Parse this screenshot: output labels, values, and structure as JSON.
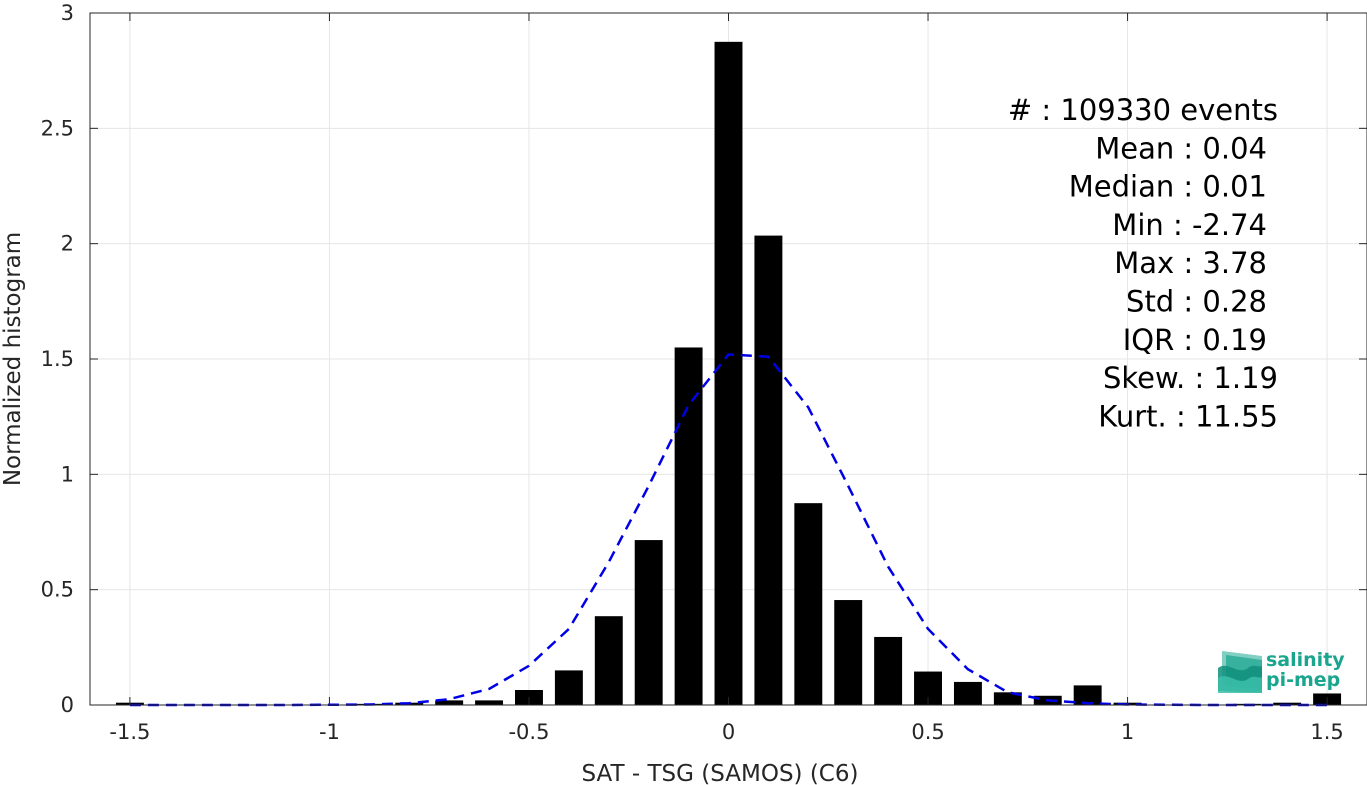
{
  "chart_data": {
    "type": "bar",
    "xlabel": "SAT - TSG (SAMOS) (C6)",
    "ylabel": "Normalized histogram",
    "xlim": [
      -1.6,
      1.6
    ],
    "ylim": [
      0,
      3
    ],
    "grid": true,
    "x_ticks": [
      -1.5,
      -1,
      -0.5,
      0,
      0.5,
      1,
      1.5
    ],
    "x_tick_labels": [
      "-1.5",
      "-1",
      "-0.5",
      "0",
      "0.5",
      "1",
      "1.5"
    ],
    "y_ticks": [
      0,
      0.5,
      1,
      1.5,
      2,
      2.5,
      3
    ],
    "y_tick_labels": [
      "0",
      "0.5",
      "1",
      "1.5",
      "2",
      "2.5",
      "3"
    ],
    "bar_width": 0.07,
    "bars": {
      "x": [
        -1.5,
        -1.4,
        -1.3,
        -1.2,
        -1.1,
        -1.0,
        -0.9,
        -0.8,
        -0.7,
        -0.6,
        -0.5,
        -0.4,
        -0.3,
        -0.2,
        -0.1,
        0.0,
        0.1,
        0.2,
        0.3,
        0.4,
        0.5,
        0.6,
        0.7,
        0.8,
        0.9,
        1.0,
        1.1,
        1.2,
        1.3,
        1.4,
        1.5
      ],
      "values": [
        0.01,
        0.0,
        0.0,
        0.0,
        0.0,
        0.0,
        0.005,
        0.01,
        0.02,
        0.02,
        0.065,
        0.15,
        0.385,
        0.715,
        1.55,
        2.875,
        2.035,
        0.875,
        0.455,
        0.295,
        0.145,
        0.1,
        0.055,
        0.04,
        0.085,
        0.01,
        0.0,
        0.0,
        0.005,
        0.01,
        0.05
      ]
    },
    "series": [
      {
        "type": "line",
        "style": "dashed",
        "color": "#0000e6",
        "x": [
          -1.5,
          -1.3,
          -1.1,
          -0.9,
          -0.8,
          -0.7,
          -0.6,
          -0.5,
          -0.4,
          -0.3,
          -0.2,
          -0.1,
          0.0,
          0.1,
          0.2,
          0.3,
          0.4,
          0.5,
          0.6,
          0.7,
          0.8,
          0.9,
          1.0,
          1.2,
          1.5
        ],
        "y": [
          0.0,
          0.0,
          0.0,
          0.002,
          0.008,
          0.025,
          0.07,
          0.17,
          0.33,
          0.62,
          0.95,
          1.3,
          1.52,
          1.51,
          1.29,
          0.95,
          0.6,
          0.33,
          0.155,
          0.055,
          0.02,
          0.008,
          0.002,
          0.0,
          0.0
        ]
      }
    ],
    "stats": [
      {
        "label": "#  : 109330 events"
      },
      {
        "label": "Mean : 0.04"
      },
      {
        "label": "Median : 0.01"
      },
      {
        "label": "Min : -2.74"
      },
      {
        "label": "Max : 3.78"
      },
      {
        "label": "Std : 0.28"
      },
      {
        "label": "IQR : 0.19"
      },
      {
        "label": "Skew. : 1.19"
      },
      {
        "label": "Kurt. : 11.55"
      }
    ]
  },
  "logo": {
    "line1": "salinity",
    "line2": "pi-mep"
  },
  "colors": {
    "bars": "#000000",
    "fit_line": "#0000e6",
    "grid": "#e6e6e6",
    "axis": "#262626",
    "logo_text": "#1aa58f"
  }
}
